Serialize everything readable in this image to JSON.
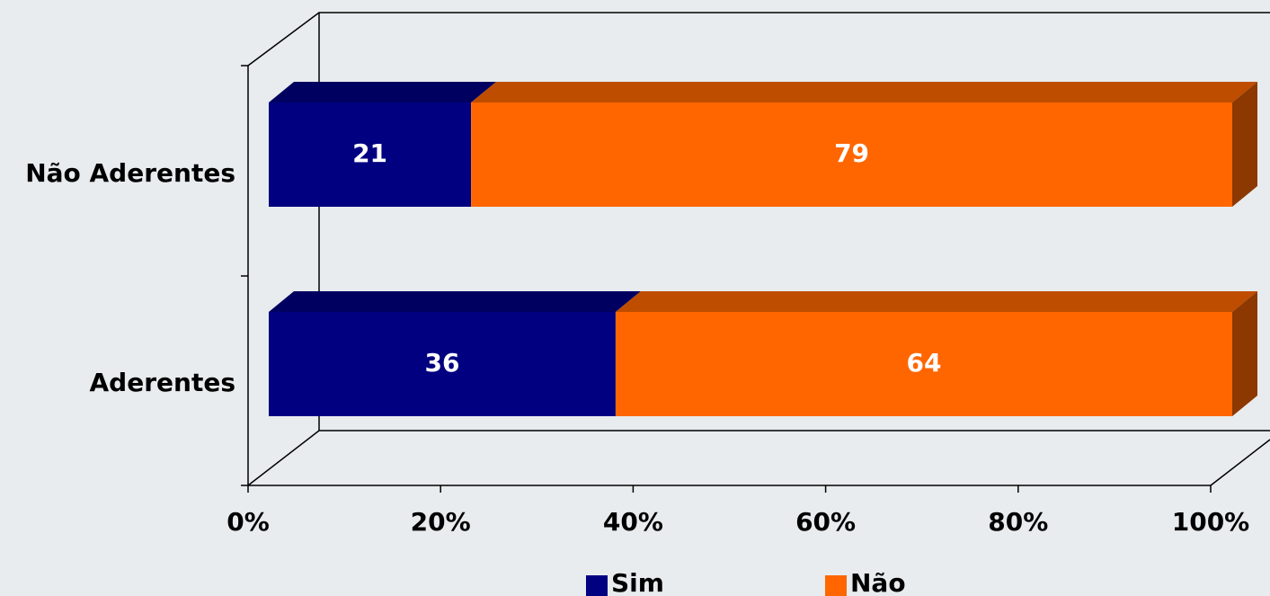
{
  "chart_data": {
    "type": "bar",
    "orientation": "horizontal",
    "stacked": true,
    "categories": [
      "Não Aderentes",
      "Aderentes"
    ],
    "series": [
      {
        "name": "Sim",
        "color": "#000080",
        "values": [
          21,
          36
        ]
      },
      {
        "name": "Não",
        "color": "#ff6600",
        "values": [
          79,
          64
        ]
      }
    ],
    "xlim": [
      0,
      100
    ],
    "xticks": [
      {
        "value": 0,
        "label": "0%"
      },
      {
        "value": 20,
        "label": "20%"
      },
      {
        "value": 40,
        "label": "40%"
      },
      {
        "value": 60,
        "label": "60%"
      },
      {
        "value": 80,
        "label": "80%"
      },
      {
        "value": 100,
        "label": "100%"
      }
    ],
    "legend": "bottom"
  }
}
